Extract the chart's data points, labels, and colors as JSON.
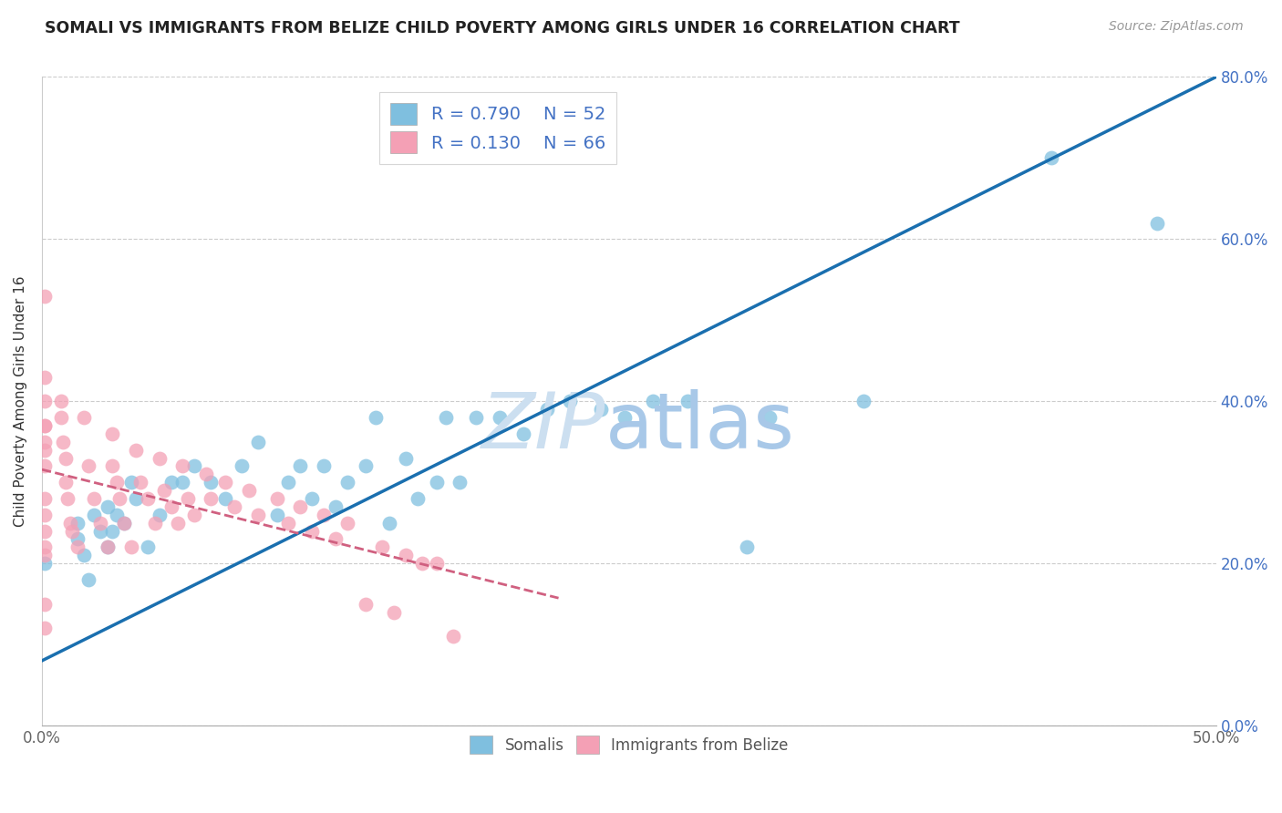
{
  "title": "SOMALI VS IMMIGRANTS FROM BELIZE CHILD POVERTY AMONG GIRLS UNDER 16 CORRELATION CHART",
  "source": "Source: ZipAtlas.com",
  "ylabel": "Child Poverty Among Girls Under 16",
  "xlim": [
    0.0,
    0.5
  ],
  "ylim": [
    0.0,
    0.8
  ],
  "xticks": [
    0.0,
    0.05,
    0.1,
    0.15,
    0.2,
    0.25,
    0.3,
    0.35,
    0.4,
    0.45,
    0.5
  ],
  "xtick_labels_show": [
    "0.0%",
    "",
    "",
    "",
    "",
    "",
    "",
    "",
    "",
    "",
    "50.0%"
  ],
  "yticks": [
    0.0,
    0.2,
    0.4,
    0.6,
    0.8
  ],
  "ytick_labels": [
    "0.0%",
    "20.0%",
    "40.0%",
    "60.0%",
    "80.0%"
  ],
  "legend_labels": [
    "Somalis",
    "Immigrants from Belize"
  ],
  "somali_color": "#7fbfdf",
  "belize_color": "#f4a0b5",
  "somali_line_color": "#1a6faf",
  "belize_line_color": "#d06080",
  "R_somali": 0.79,
  "N_somali": 52,
  "R_belize": 0.13,
  "N_belize": 66,
  "somali_x": [
    0.001,
    0.015,
    0.018,
    0.022,
    0.028,
    0.025,
    0.02,
    0.015,
    0.032,
    0.03,
    0.028,
    0.04,
    0.038,
    0.035,
    0.05,
    0.055,
    0.045,
    0.06,
    0.065,
    0.072,
    0.078,
    0.085,
    0.092,
    0.1,
    0.105,
    0.11,
    0.115,
    0.12,
    0.125,
    0.13,
    0.138,
    0.142,
    0.148,
    0.155,
    0.16,
    0.168,
    0.172,
    0.178,
    0.185,
    0.195,
    0.205,
    0.215,
    0.225,
    0.238,
    0.248,
    0.26,
    0.275,
    0.3,
    0.31,
    0.35,
    0.43,
    0.475
  ],
  "somali_y": [
    0.2,
    0.25,
    0.21,
    0.26,
    0.22,
    0.24,
    0.18,
    0.23,
    0.26,
    0.24,
    0.27,
    0.28,
    0.3,
    0.25,
    0.26,
    0.3,
    0.22,
    0.3,
    0.32,
    0.3,
    0.28,
    0.32,
    0.35,
    0.26,
    0.3,
    0.32,
    0.28,
    0.32,
    0.27,
    0.3,
    0.32,
    0.38,
    0.25,
    0.33,
    0.28,
    0.3,
    0.38,
    0.3,
    0.38,
    0.38,
    0.36,
    0.39,
    0.4,
    0.39,
    0.38,
    0.4,
    0.4,
    0.22,
    0.38,
    0.4,
    0.7,
    0.62
  ],
  "belize_x": [
    0.001,
    0.001,
    0.001,
    0.001,
    0.001,
    0.001,
    0.001,
    0.001,
    0.001,
    0.001,
    0.001,
    0.001,
    0.001,
    0.001,
    0.001,
    0.008,
    0.008,
    0.009,
    0.01,
    0.01,
    0.011,
    0.012,
    0.013,
    0.015,
    0.018,
    0.02,
    0.022,
    0.025,
    0.028,
    0.03,
    0.03,
    0.032,
    0.033,
    0.035,
    0.038,
    0.04,
    0.042,
    0.045,
    0.048,
    0.05,
    0.052,
    0.055,
    0.058,
    0.06,
    0.062,
    0.065,
    0.07,
    0.072,
    0.078,
    0.082,
    0.088,
    0.092,
    0.1,
    0.105,
    0.11,
    0.115,
    0.12,
    0.125,
    0.13,
    0.138,
    0.145,
    0.15,
    0.155,
    0.162,
    0.168,
    0.175
  ],
  "belize_y": [
    0.53,
    0.43,
    0.4,
    0.37,
    0.37,
    0.35,
    0.34,
    0.32,
    0.28,
    0.26,
    0.24,
    0.22,
    0.21,
    0.15,
    0.12,
    0.4,
    0.38,
    0.35,
    0.33,
    0.3,
    0.28,
    0.25,
    0.24,
    0.22,
    0.38,
    0.32,
    0.28,
    0.25,
    0.22,
    0.36,
    0.32,
    0.3,
    0.28,
    0.25,
    0.22,
    0.34,
    0.3,
    0.28,
    0.25,
    0.33,
    0.29,
    0.27,
    0.25,
    0.32,
    0.28,
    0.26,
    0.31,
    0.28,
    0.3,
    0.27,
    0.29,
    0.26,
    0.28,
    0.25,
    0.27,
    0.24,
    0.26,
    0.23,
    0.25,
    0.15,
    0.22,
    0.14,
    0.21,
    0.2,
    0.2,
    0.11
  ]
}
